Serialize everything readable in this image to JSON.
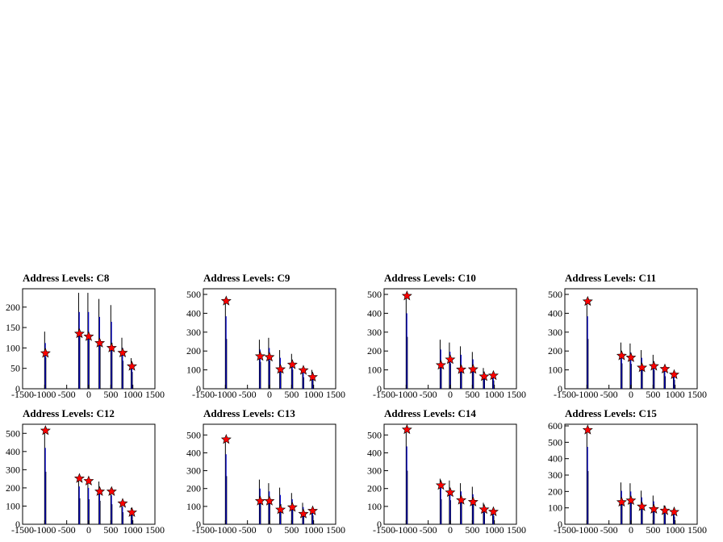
{
  "chart_data": [
    {
      "type": "histogram",
      "title": "Address Levels: C8",
      "xlim": [
        -1500,
        1500
      ],
      "ylim": [
        0,
        245
      ],
      "xticks": [
        -1500,
        -1000,
        -500,
        0,
        500,
        1000,
        1500
      ],
      "yticks": [
        0,
        50,
        100,
        150,
        200
      ],
      "spikes": [
        [
          -1000,
          140
        ],
        [
          -230,
          235
        ],
        [
          -20,
          235
        ],
        [
          230,
          220
        ],
        [
          500,
          205
        ],
        [
          750,
          125
        ],
        [
          960,
          75
        ]
      ],
      "peaks": [
        [
          -1000,
          87
        ],
        [
          -230,
          135
        ],
        [
          -20,
          128
        ],
        [
          230,
          112
        ],
        [
          500,
          100
        ],
        [
          750,
          88
        ],
        [
          960,
          55
        ]
      ]
    },
    {
      "type": "histogram",
      "title": "Address Levels: C9",
      "xlim": [
        -1500,
        1500
      ],
      "ylim": [
        0,
        530
      ],
      "xticks": [
        -1500,
        -1000,
        -500,
        0,
        500,
        1000,
        1500
      ],
      "yticks": [
        0,
        100,
        200,
        300,
        400,
        500
      ],
      "spikes": [
        [
          -1000,
          480
        ],
        [
          -230,
          260
        ],
        [
          -20,
          270
        ],
        [
          230,
          205
        ],
        [
          500,
          185
        ],
        [
          750,
          110
        ],
        [
          960,
          100
        ]
      ],
      "peaks": [
        [
          -1000,
          465
        ],
        [
          -230,
          172
        ],
        [
          -20,
          168
        ],
        [
          230,
          103
        ],
        [
          500,
          128
        ],
        [
          750,
          98
        ],
        [
          960,
          62
        ]
      ]
    },
    {
      "type": "histogram",
      "title": "Address Levels: C10",
      "xlim": [
        -1500,
        1500
      ],
      "ylim": [
        0,
        530
      ],
      "xticks": [
        -1500,
        -1000,
        -500,
        0,
        500,
        1000,
        1500
      ],
      "yticks": [
        0,
        100,
        200,
        300,
        400,
        500
      ],
      "spikes": [
        [
          -1000,
          500
        ],
        [
          -230,
          260
        ],
        [
          -20,
          245
        ],
        [
          230,
          225
        ],
        [
          500,
          195
        ],
        [
          750,
          110
        ],
        [
          960,
          80
        ]
      ],
      "peaks": [
        [
          -1000,
          492
        ],
        [
          -230,
          125
        ],
        [
          -20,
          155
        ],
        [
          230,
          102
        ],
        [
          500,
          103
        ],
        [
          750,
          65
        ],
        [
          960,
          70
        ]
      ]
    },
    {
      "type": "histogram",
      "title": "Address Levels: C11",
      "xlim": [
        -1500,
        1500
      ],
      "ylim": [
        0,
        530
      ],
      "xticks": [
        -1500,
        -1000,
        -500,
        0,
        500,
        1000,
        1500
      ],
      "yticks": [
        0,
        100,
        200,
        300,
        400,
        500
      ],
      "spikes": [
        [
          -1000,
          480
        ],
        [
          -230,
          245
        ],
        [
          -20,
          240
        ],
        [
          230,
          205
        ],
        [
          500,
          180
        ],
        [
          750,
          120
        ],
        [
          960,
          85
        ]
      ],
      "peaks": [
        [
          -1000,
          463
        ],
        [
          -230,
          175
        ],
        [
          -20,
          165
        ],
        [
          230,
          112
        ],
        [
          500,
          120
        ],
        [
          750,
          105
        ],
        [
          960,
          75
        ]
      ]
    },
    {
      "type": "histogram",
      "title": "Address Levels: C12",
      "xlim": [
        -1500,
        1500
      ],
      "ylim": [
        0,
        550
      ],
      "xticks": [
        -1500,
        -1000,
        -500,
        0,
        500,
        1000,
        1500
      ],
      "yticks": [
        0,
        100,
        200,
        300,
        400,
        500
      ],
      "spikes": [
        [
          -1000,
          525
        ],
        [
          -230,
          260
        ],
        [
          -20,
          250
        ],
        [
          230,
          235
        ],
        [
          500,
          200
        ],
        [
          750,
          120
        ],
        [
          960,
          90
        ]
      ],
      "peaks": [
        [
          -1000,
          515
        ],
        [
          -230,
          252
        ],
        [
          -20,
          238
        ],
        [
          230,
          180
        ],
        [
          500,
          180
        ],
        [
          750,
          115
        ],
        [
          960,
          65
        ]
      ]
    },
    {
      "type": "histogram",
      "title": "Address Levels: C13",
      "xlim": [
        -1500,
        1500
      ],
      "ylim": [
        0,
        560
      ],
      "xticks": [
        -1500,
        -1000,
        -500,
        0,
        500,
        1000,
        1500
      ],
      "yticks": [
        0,
        100,
        200,
        300,
        400,
        500
      ],
      "spikes": [
        [
          -1000,
          490
        ],
        [
          -230,
          250
        ],
        [
          -20,
          230
        ],
        [
          230,
          205
        ],
        [
          500,
          175
        ],
        [
          750,
          120
        ],
        [
          960,
          90
        ]
      ],
      "peaks": [
        [
          -1000,
          475
        ],
        [
          -230,
          130
        ],
        [
          -20,
          130
        ],
        [
          230,
          82
        ],
        [
          500,
          95
        ],
        [
          750,
          58
        ],
        [
          960,
          75
        ]
      ]
    },
    {
      "type": "histogram",
      "title": "Address Levels: C14",
      "xlim": [
        -1500,
        1500
      ],
      "ylim": [
        0,
        560
      ],
      "xticks": [
        -1500,
        -1000,
        -500,
        0,
        500,
        1000,
        1500
      ],
      "yticks": [
        0,
        100,
        200,
        300,
        400,
        500
      ],
      "spikes": [
        [
          -1000,
          545
        ],
        [
          -230,
          255
        ],
        [
          -20,
          245
        ],
        [
          230,
          230
        ],
        [
          500,
          210
        ],
        [
          750,
          120
        ],
        [
          960,
          85
        ]
      ],
      "peaks": [
        [
          -1000,
          530
        ],
        [
          -230,
          218
        ],
        [
          -20,
          178
        ],
        [
          230,
          135
        ],
        [
          500,
          125
        ],
        [
          750,
          83
        ],
        [
          960,
          70
        ]
      ]
    },
    {
      "type": "histogram",
      "title": "Address Levels: C15",
      "xlim": [
        -1500,
        1500
      ],
      "ylim": [
        0,
        610
      ],
      "xticks": [
        -1500,
        -1000,
        -500,
        0,
        500,
        1000,
        1500
      ],
      "yticks": [
        0,
        100,
        200,
        300,
        400,
        500,
        600
      ],
      "spikes": [
        [
          -1000,
          590
        ],
        [
          -230,
          255
        ],
        [
          -20,
          250
        ],
        [
          230,
          205
        ],
        [
          500,
          175
        ],
        [
          750,
          115
        ],
        [
          960,
          85
        ]
      ],
      "peaks": [
        [
          -1000,
          575
        ],
        [
          -230,
          135
        ],
        [
          -20,
          145
        ],
        [
          230,
          108
        ],
        [
          500,
          92
        ],
        [
          750,
          83
        ],
        [
          960,
          75
        ]
      ]
    }
  ]
}
